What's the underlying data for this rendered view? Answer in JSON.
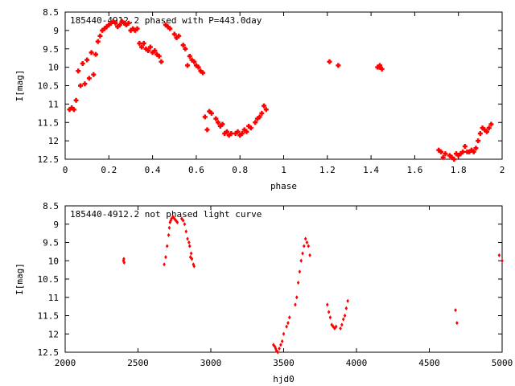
{
  "colors": {
    "points": "#ff0000",
    "axes": "#000000",
    "background": "#ffffff"
  },
  "chart_data": [
    {
      "type": "scatter",
      "title": "185440-4912.2 phased with P=443.0day",
      "xlabel": "phase",
      "ylabel": "I[mag]",
      "xlim": [
        0,
        2
      ],
      "ylim": [
        8.5,
        12.5
      ],
      "y_inverted": true,
      "xticks": [
        "0",
        "0.2",
        "0.4",
        "0.6",
        "0.8",
        "1",
        "1.2",
        "1.4",
        "1.6",
        "1.8",
        "2"
      ],
      "yticks": [
        "8.5",
        "9",
        "9.5",
        "10",
        "10.5",
        "11",
        "11.5",
        "12",
        "12.5"
      ],
      "marker": "plus",
      "series": [
        {
          "points": [
            [
              0.02,
              11.15
            ],
            [
              0.03,
              11.1
            ],
            [
              0.04,
              11.15
            ],
            [
              0.05,
              10.9
            ],
            [
              0.06,
              10.1
            ],
            [
              0.07,
              10.5
            ],
            [
              0.08,
              9.9
            ],
            [
              0.09,
              10.45
            ],
            [
              0.1,
              9.8
            ],
            [
              0.11,
              10.3
            ],
            [
              0.12,
              9.6
            ],
            [
              0.13,
              10.2
            ],
            [
              0.14,
              9.65
            ],
            [
              0.15,
              9.3
            ],
            [
              0.16,
              9.15
            ],
            [
              0.17,
              9.0
            ],
            [
              0.18,
              8.95
            ],
            [
              0.19,
              8.9
            ],
            [
              0.2,
              8.85
            ],
            [
              0.21,
              8.8
            ],
            [
              0.22,
              8.75
            ],
            [
              0.23,
              8.8
            ],
            [
              0.24,
              8.9
            ],
            [
              0.25,
              8.85
            ],
            [
              0.26,
              8.75
            ],
            [
              0.27,
              8.8
            ],
            [
              0.28,
              8.85
            ],
            [
              0.29,
              8.8
            ],
            [
              0.3,
              9.0
            ],
            [
              0.31,
              8.95
            ],
            [
              0.32,
              9.0
            ],
            [
              0.33,
              8.95
            ],
            [
              0.34,
              9.35
            ],
            [
              0.35,
              9.45
            ],
            [
              0.36,
              9.35
            ],
            [
              0.37,
              9.5
            ],
            [
              0.38,
              9.55
            ],
            [
              0.39,
              9.45
            ],
            [
              0.4,
              9.6
            ],
            [
              0.41,
              9.55
            ],
            [
              0.42,
              9.65
            ],
            [
              0.43,
              9.7
            ],
            [
              0.44,
              9.85
            ],
            [
              0.46,
              8.85
            ],
            [
              0.47,
              8.9
            ],
            [
              0.48,
              8.95
            ],
            [
              0.5,
              9.1
            ],
            [
              0.51,
              9.2
            ],
            [
              0.52,
              9.15
            ],
            [
              0.54,
              9.4
            ],
            [
              0.55,
              9.5
            ],
            [
              0.56,
              9.95
            ],
            [
              0.57,
              9.7
            ],
            [
              0.58,
              9.8
            ],
            [
              0.59,
              9.85
            ],
            [
              0.6,
              9.95
            ],
            [
              0.61,
              10.0
            ],
            [
              0.62,
              10.1
            ],
            [
              0.63,
              10.15
            ],
            [
              0.64,
              11.35
            ],
            [
              0.65,
              11.7
            ],
            [
              0.66,
              11.2
            ],
            [
              0.67,
              11.25
            ],
            [
              0.69,
              11.4
            ],
            [
              0.7,
              11.5
            ],
            [
              0.71,
              11.6
            ],
            [
              0.72,
              11.55
            ],
            [
              0.73,
              11.8
            ],
            [
              0.74,
              11.75
            ],
            [
              0.75,
              11.85
            ],
            [
              0.76,
              11.8
            ],
            [
              0.78,
              11.8
            ],
            [
              0.79,
              11.75
            ],
            [
              0.8,
              11.85
            ],
            [
              0.81,
              11.8
            ],
            [
              0.82,
              11.7
            ],
            [
              0.83,
              11.75
            ],
            [
              0.84,
              11.6
            ],
            [
              0.85,
              11.65
            ],
            [
              0.87,
              11.5
            ],
            [
              0.88,
              11.4
            ],
            [
              0.89,
              11.35
            ],
            [
              0.9,
              11.25
            ],
            [
              0.91,
              11.05
            ],
            [
              0.92,
              11.15
            ],
            [
              1.21,
              9.85
            ],
            [
              1.25,
              9.95
            ],
            [
              1.43,
              10.0
            ],
            [
              1.44,
              9.95
            ],
            [
              1.45,
              10.05
            ],
            [
              1.44,
              10.0
            ],
            [
              1.71,
              12.25
            ],
            [
              1.72,
              12.3
            ],
            [
              1.73,
              12.45
            ],
            [
              1.74,
              12.35
            ],
            [
              1.76,
              12.4
            ],
            [
              1.77,
              12.45
            ],
            [
              1.78,
              12.5
            ],
            [
              1.79,
              12.35
            ],
            [
              1.8,
              12.4
            ],
            [
              1.81,
              12.35
            ],
            [
              1.82,
              12.3
            ],
            [
              1.83,
              12.15
            ],
            [
              1.84,
              12.3
            ],
            [
              1.85,
              12.3
            ],
            [
              1.86,
              12.25
            ],
            [
              1.87,
              12.3
            ],
            [
              1.88,
              12.2
            ],
            [
              1.89,
              12.0
            ],
            [
              1.9,
              11.8
            ],
            [
              1.91,
              11.65
            ],
            [
              1.92,
              11.7
            ],
            [
              1.93,
              11.75
            ],
            [
              1.94,
              11.65
            ],
            [
              1.95,
              11.55
            ]
          ]
        }
      ]
    },
    {
      "type": "scatter",
      "title": "185440-4912.2 not phased light curve",
      "xlabel": "hjd0",
      "ylabel": "I[mag]",
      "xlim": [
        2000,
        5000
      ],
      "ylim": [
        8.5,
        12.5
      ],
      "y_inverted": true,
      "xticks": [
        "2000",
        "2500",
        "3000",
        "3500",
        "4000",
        "4500",
        "5000"
      ],
      "yticks": [
        "8.5",
        "9",
        "9.5",
        "10",
        "10.5",
        "11",
        "11.5",
        "12",
        "12.5"
      ],
      "marker": "diamond",
      "series": [
        {
          "points": [
            [
              2400,
              10.0
            ],
            [
              2403,
              9.95
            ],
            [
              2405,
              10.05
            ],
            [
              2680,
              10.1
            ],
            [
              2690,
              9.9
            ],
            [
              2700,
              9.6
            ],
            [
              2710,
              9.3
            ],
            [
              2715,
              9.1
            ],
            [
              2720,
              8.95
            ],
            [
              2725,
              8.9
            ],
            [
              2730,
              8.85
            ],
            [
              2740,
              8.8
            ],
            [
              2750,
              8.85
            ],
            [
              2760,
              8.9
            ],
            [
              2770,
              8.95
            ],
            [
              2800,
              8.85
            ],
            [
              2810,
              8.9
            ],
            [
              2820,
              9.0
            ],
            [
              2830,
              9.2
            ],
            [
              2840,
              9.4
            ],
            [
              2850,
              9.5
            ],
            [
              2855,
              9.6
            ],
            [
              2860,
              9.9
            ],
            [
              2865,
              9.8
            ],
            [
              2870,
              9.95
            ],
            [
              2880,
              10.1
            ],
            [
              2885,
              10.15
            ],
            [
              3430,
              12.3
            ],
            [
              3440,
              12.35
            ],
            [
              3445,
              12.4
            ],
            [
              3450,
              12.45
            ],
            [
              3460,
              12.5
            ],
            [
              3470,
              12.4
            ],
            [
              3480,
              12.3
            ],
            [
              3490,
              12.2
            ],
            [
              3500,
              12.0
            ],
            [
              3520,
              11.8
            ],
            [
              3530,
              11.7
            ],
            [
              3540,
              11.55
            ],
            [
              3580,
              11.2
            ],
            [
              3590,
              11.0
            ],
            [
              3600,
              10.6
            ],
            [
              3610,
              10.3
            ],
            [
              3620,
              10.0
            ],
            [
              3630,
              9.8
            ],
            [
              3640,
              9.6
            ],
            [
              3650,
              9.4
            ],
            [
              3660,
              9.5
            ],
            [
              3670,
              9.6
            ],
            [
              3680,
              9.85
            ],
            [
              3800,
              11.2
            ],
            [
              3810,
              11.4
            ],
            [
              3820,
              11.55
            ],
            [
              3830,
              11.75
            ],
            [
              3840,
              11.8
            ],
            [
              3850,
              11.85
            ],
            [
              3860,
              11.8
            ],
            [
              3890,
              11.85
            ],
            [
              3900,
              11.75
            ],
            [
              3910,
              11.6
            ],
            [
              3920,
              11.5
            ],
            [
              3930,
              11.3
            ],
            [
              3940,
              11.1
            ],
            [
              4680,
              11.35
            ],
            [
              4690,
              11.7
            ],
            [
              4980,
              9.85
            ],
            [
              5000,
              10.0
            ]
          ]
        }
      ]
    }
  ]
}
